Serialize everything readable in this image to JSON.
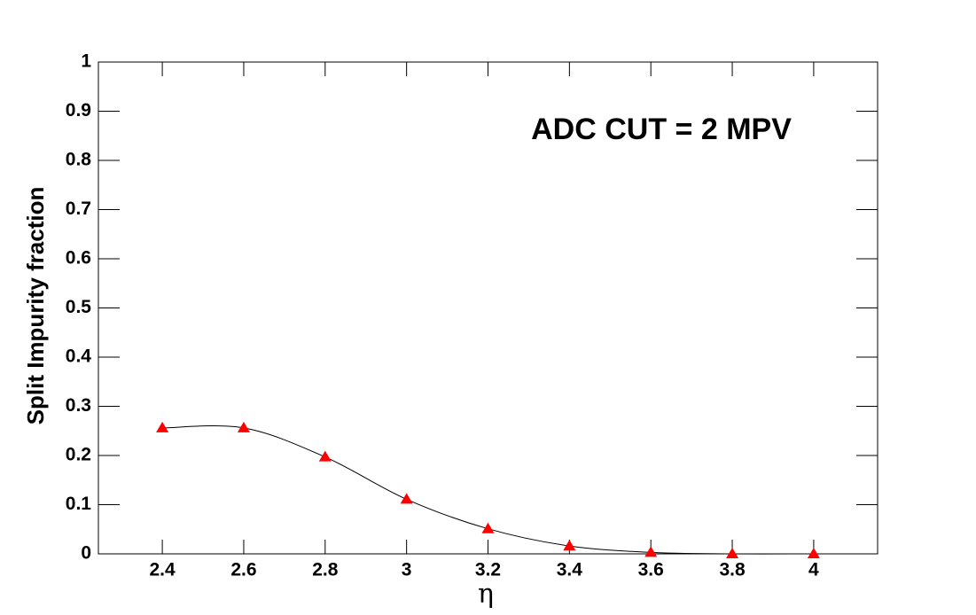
{
  "chart_data": {
    "type": "line",
    "x_label": "η",
    "y_label": "Split Impurity fraction",
    "annotation": "ADC CUT = 2 MPV",
    "annotation_color": "#ff0000",
    "x": [
      2.4,
      2.6,
      2.8,
      3.0,
      3.2,
      3.4,
      3.6,
      3.8,
      4.0
    ],
    "series": [
      {
        "color": "#ff0000",
        "line_color": "#000000",
        "values": [
          0.256,
          0.256,
          0.197,
          0.111,
          0.051,
          0.016,
          0.003,
          0.0,
          0.0
        ]
      }
    ],
    "xlim": [
      2.243,
      4.157
    ],
    "ylim": [
      0,
      1
    ],
    "xticks": [
      2.4,
      2.6,
      2.8,
      3,
      3.2,
      3.4,
      3.6,
      3.8,
      4
    ],
    "yticks": [
      0,
      0.1,
      0.2,
      0.3,
      0.4,
      0.5,
      0.6,
      0.7,
      0.8,
      0.9,
      1
    ],
    "grid": false
  }
}
